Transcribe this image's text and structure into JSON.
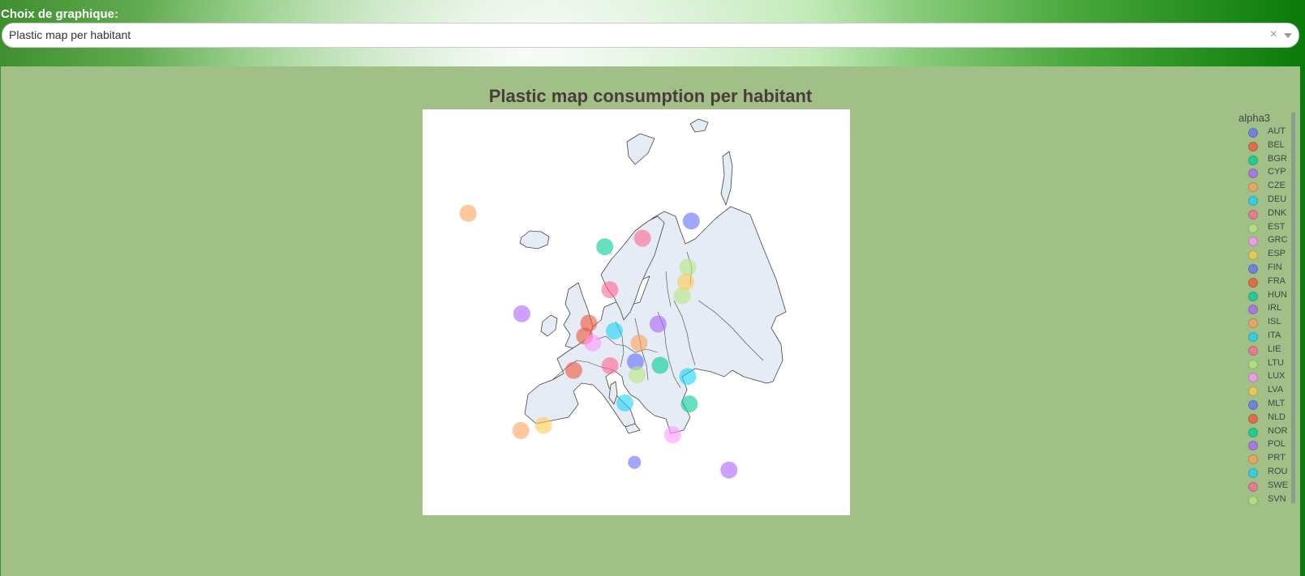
{
  "header": {
    "label": "Choix de graphique:",
    "dropdown_value": "Plastic map per habitant",
    "clear_glyph": "×"
  },
  "chart_data": {
    "type": "scatter",
    "title": "Plastic map consumption per habitant",
    "legend_title": "alpha3",
    "legend_placement": "right",
    "points": [
      {
        "name": "AUT",
        "color": "#636efa",
        "lon": 14.6,
        "lat": 47.6
      },
      {
        "name": "BEL",
        "color": "#ef553b",
        "lon": 4.5,
        "lat": 50.6
      },
      {
        "name": "BGR",
        "color": "#00cc96",
        "lon": 25.3,
        "lat": 42.7
      },
      {
        "name": "CYP",
        "color": "#ab63fa",
        "lon": 33.2,
        "lat": 35.0
      },
      {
        "name": "CZE",
        "color": "#ffa15a",
        "lon": 15.3,
        "lat": 49.8
      },
      {
        "name": "DEU",
        "color": "#19d3f3",
        "lon": 10.4,
        "lat": 51.2
      },
      {
        "name": "DNK",
        "color": "#ff6692",
        "lon": 9.5,
        "lat": 56.0
      },
      {
        "name": "EST",
        "color": "#b6e880",
        "lon": 25.0,
        "lat": 58.6
      },
      {
        "name": "GRC",
        "color": "#ff97ff",
        "lon": 22.0,
        "lat": 39.1
      },
      {
        "name": "ESP",
        "color": "#fecb52",
        "lon": -3.7,
        "lat": 40.2
      },
      {
        "name": "FIN",
        "color": "#636efa",
        "lon": 25.7,
        "lat": 64.0
      },
      {
        "name": "FRA",
        "color": "#ef553b",
        "lon": 2.3,
        "lat": 46.6
      },
      {
        "name": "HUN",
        "color": "#00cc96",
        "lon": 19.5,
        "lat": 47.2
      },
      {
        "name": "IRL",
        "color": "#ab63fa",
        "lon": -8.0,
        "lat": 53.2
      },
      {
        "name": "ISL",
        "color": "#ffa15a",
        "lon": -18.7,
        "lat": 64.9
      },
      {
        "name": "ITA",
        "color": "#19d3f3",
        "lon": 12.5,
        "lat": 42.8
      },
      {
        "name": "LIE",
        "color": "#ff6692",
        "lon": 9.55,
        "lat": 47.15
      },
      {
        "name": "LTU",
        "color": "#b6e880",
        "lon": 23.9,
        "lat": 55.3
      },
      {
        "name": "LUX",
        "color": "#ff97ff",
        "lon": 6.1,
        "lat": 49.8
      },
      {
        "name": "LVA",
        "color": "#fecb52",
        "lon": 24.6,
        "lat": 56.9
      },
      {
        "name": "MLT",
        "color": "#636efa",
        "lon": 14.4,
        "lat": 35.9
      },
      {
        "name": "NLD",
        "color": "#ef553b",
        "lon": 5.3,
        "lat": 52.1
      },
      {
        "name": "NOR",
        "color": "#00cc96",
        "lon": 8.5,
        "lat": 61.0
      },
      {
        "name": "POL",
        "color": "#ab63fa",
        "lon": 19.1,
        "lat": 52.0
      },
      {
        "name": "PRT",
        "color": "#ffa15a",
        "lon": -8.2,
        "lat": 39.6
      },
      {
        "name": "ROU",
        "color": "#19d3f3",
        "lon": 25.0,
        "lat": 45.9
      },
      {
        "name": "SWE",
        "color": "#ff6692",
        "lon": 16.0,
        "lat": 62.0
      },
      {
        "name": "SVN",
        "color": "#b6e880",
        "lon": 14.9,
        "lat": 46.1
      }
    ]
  }
}
